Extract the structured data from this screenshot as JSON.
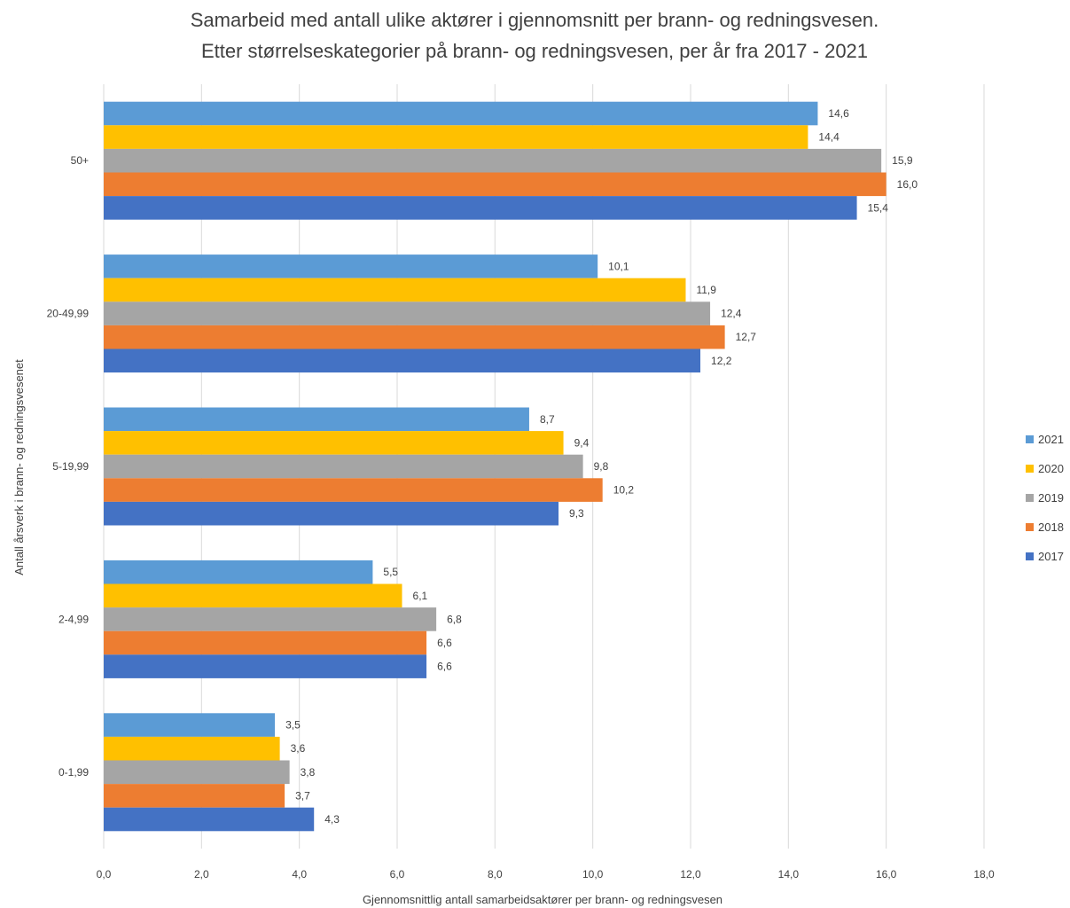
{
  "chart_data": {
    "type": "bar",
    "orientation": "horizontal",
    "title": [
      "Samarbeid med antall ulike aktører i gjennomsnitt per brann- og redningsvesen.",
      "Etter størrelseskategorier på brann- og redningsvesen, per år fra 2017 - 2021"
    ],
    "xlabel": "Gjennomsnittlig antall samarbeidsaktører per brann- og redningsvesen",
    "ylabel": "Antall årsverk i brann- og redningsvesenet",
    "xlim": [
      0,
      18
    ],
    "xticks": [
      "0,0",
      "2,0",
      "4,0",
      "6,0",
      "8,0",
      "10,0",
      "12,0",
      "14,0",
      "16,0",
      "18,0"
    ],
    "categories": [
      "50+",
      "20-49,99",
      "5-19,99",
      "2-4,99",
      "0-1,99"
    ],
    "series": [
      {
        "name": "2021",
        "color": "#5B9BD5",
        "values": [
          14.6,
          10.1,
          8.7,
          5.5,
          3.5
        ],
        "labels": [
          "14,6",
          "10,1",
          "8,7",
          "5,5",
          "3,5"
        ]
      },
      {
        "name": "2020",
        "color": "#FFC000",
        "values": [
          14.4,
          11.9,
          9.4,
          6.1,
          3.6
        ],
        "labels": [
          "14,4",
          "11,9",
          "9,4",
          "6,1",
          "3,6"
        ]
      },
      {
        "name": "2019",
        "color": "#A5A5A5",
        "values": [
          15.9,
          12.4,
          9.8,
          6.8,
          3.8
        ],
        "labels": [
          "15,9",
          "12,4",
          "9,8",
          "6,8",
          "3,8"
        ]
      },
      {
        "name": "2018",
        "color": "#ED7D31",
        "values": [
          16.0,
          12.7,
          10.2,
          6.6,
          3.7
        ],
        "labels": [
          "16,0",
          "12,7",
          "10,2",
          "6,6",
          "3,7"
        ]
      },
      {
        "name": "2017",
        "color": "#4472C4",
        "values": [
          15.4,
          12.2,
          9.3,
          6.6,
          4.3
        ],
        "labels": [
          "15,4",
          "12,2",
          "9,3",
          "6,6",
          "4,3"
        ]
      }
    ],
    "grid": true,
    "legend_position": "right"
  }
}
